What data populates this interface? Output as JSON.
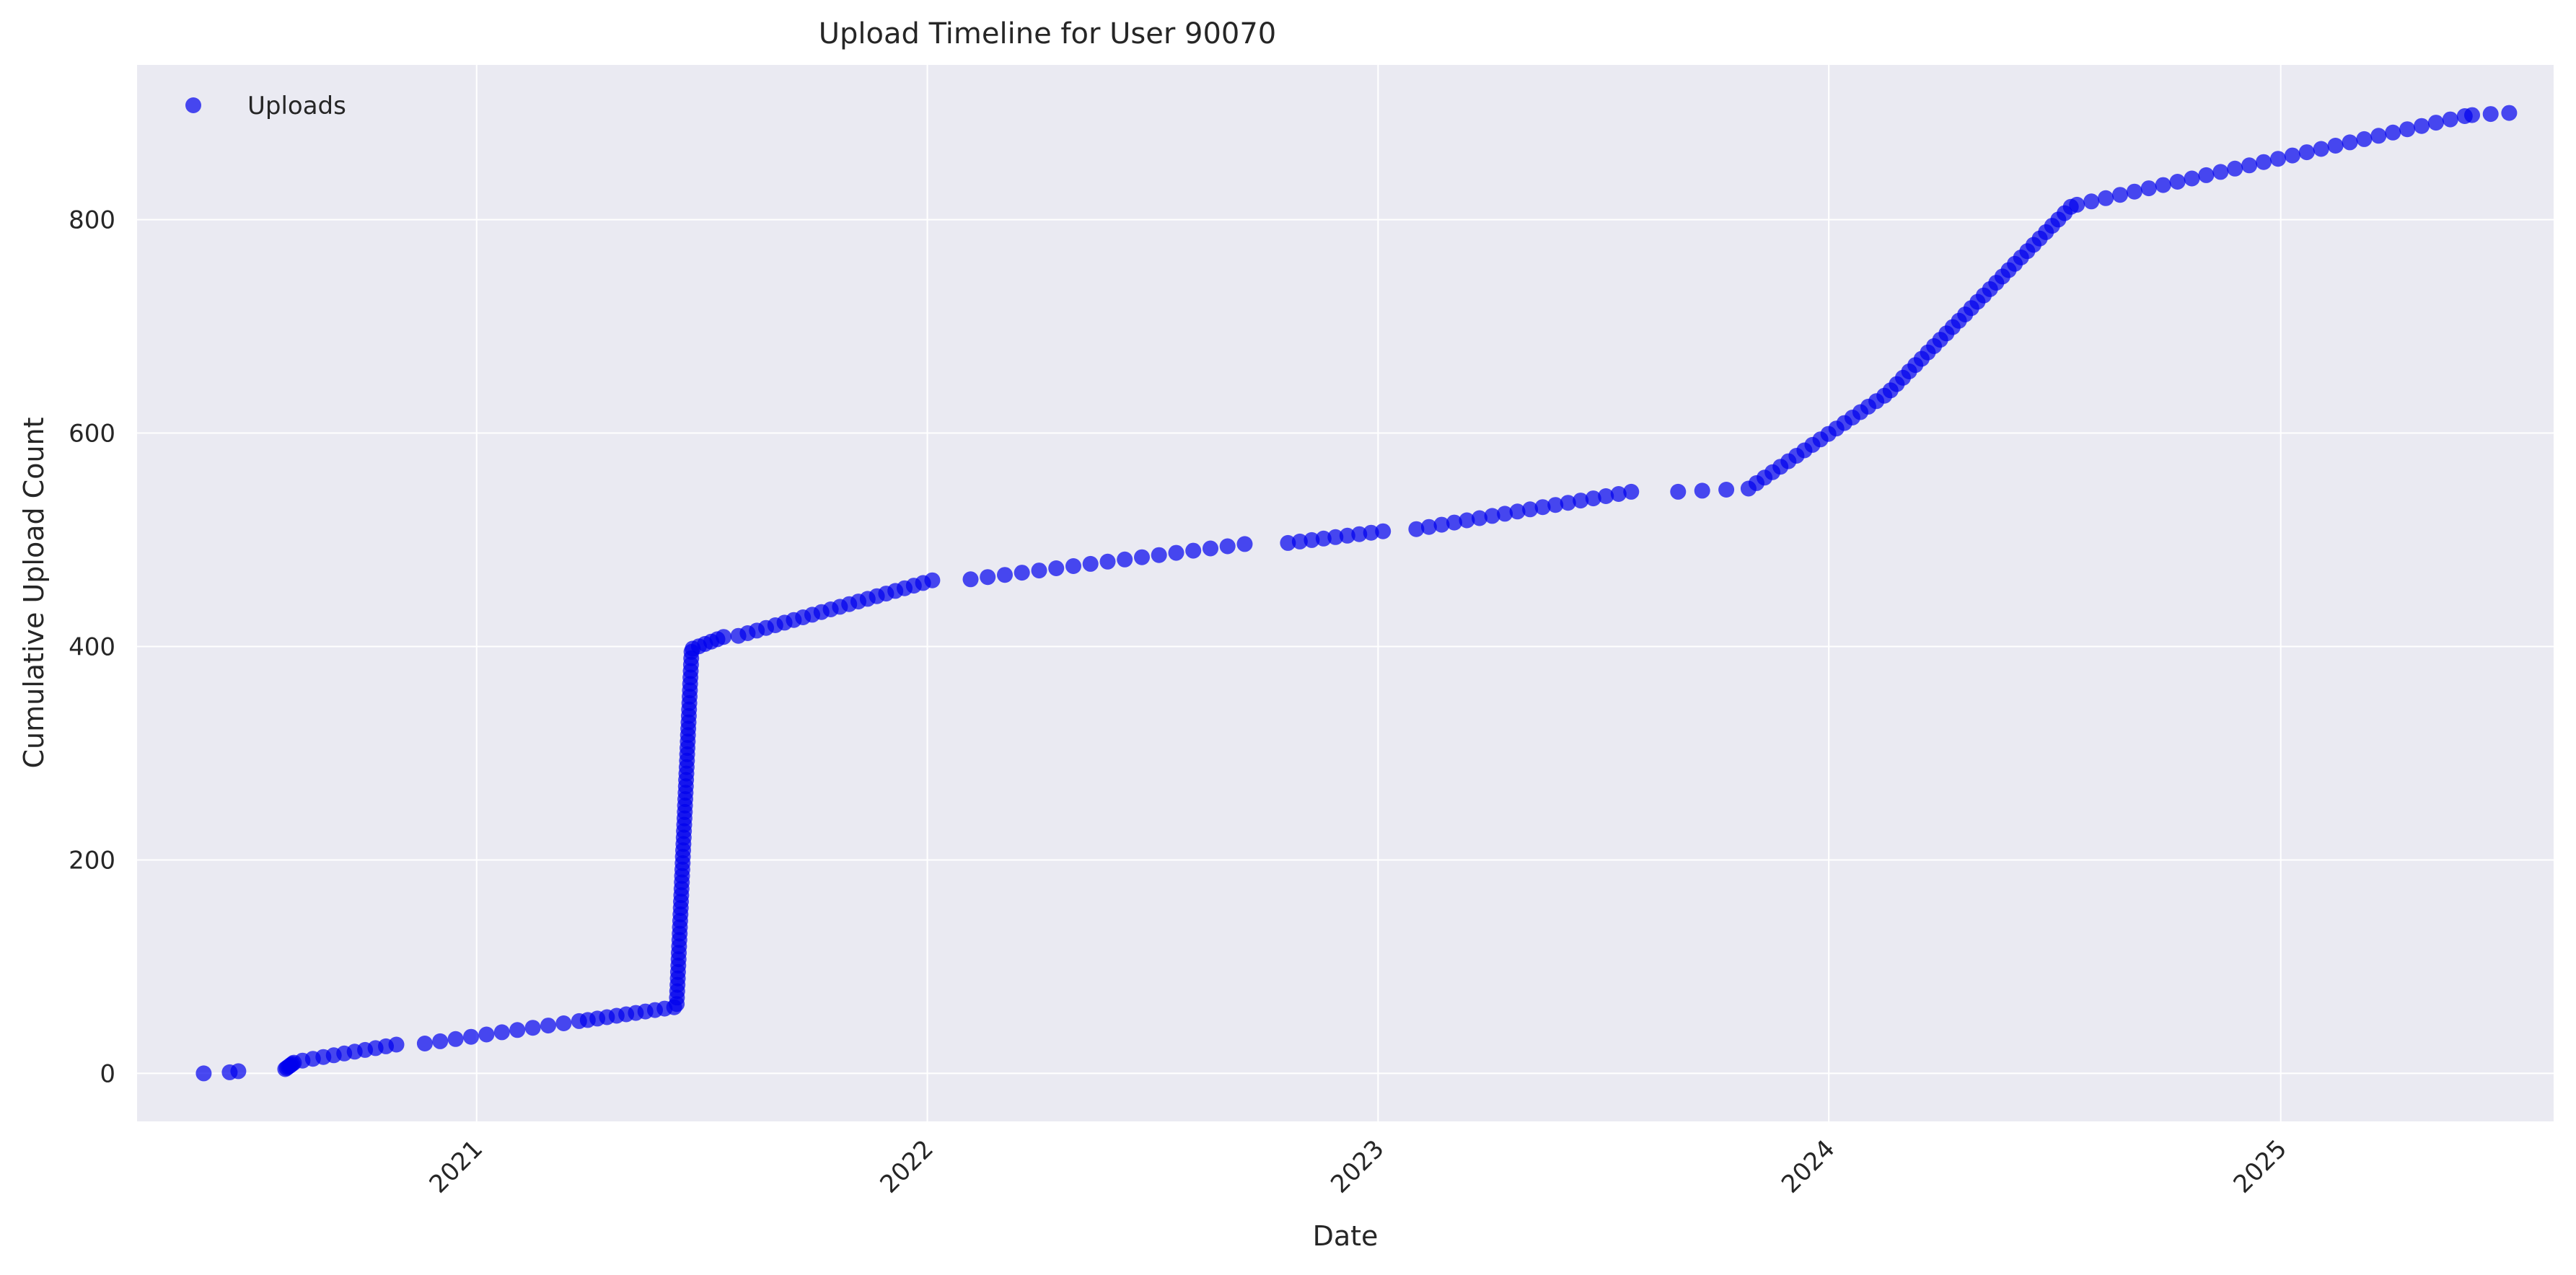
{
  "chart_data": {
    "type": "scatter",
    "title": "Upload Timeline for User 90070",
    "xlabel": "Date",
    "ylabel": "Cumulative Upload Count",
    "x_type": "date",
    "xlim": [
      "2020-04-01",
      "2025-08-10"
    ],
    "ylim": [
      -45,
      945
    ],
    "x_ticks": [
      "2021-01-01",
      "2022-01-01",
      "2023-01-01",
      "2024-01-01",
      "2025-01-01"
    ],
    "x_tick_labels": [
      "2021",
      "2022",
      "2023",
      "2024",
      "2025"
    ],
    "y_ticks": [
      0,
      200,
      400,
      600,
      800
    ],
    "y_tick_labels": [
      "0",
      "200",
      "400",
      "600",
      "800"
    ],
    "grid": true,
    "legend_position": "top-left",
    "background_color": "#eaeaf2",
    "grid_color": "#ffffff",
    "series": [
      {
        "name": "Uploads",
        "color": "#0000ee",
        "segments": [
          {
            "from": "2020-05-25",
            "to": "2020-05-25",
            "y_from": 0,
            "y_to": 0,
            "count": 1
          },
          {
            "from": "2020-06-15",
            "to": "2020-06-22",
            "y_from": 1,
            "y_to": 2,
            "count": 2
          },
          {
            "from": "2020-07-30",
            "to": "2020-08-06",
            "y_from": 4,
            "y_to": 10,
            "count": 7
          },
          {
            "from": "2020-08-13",
            "to": "2020-10-28",
            "y_from": 12,
            "y_to": 27,
            "count": 10
          },
          {
            "from": "2020-11-20",
            "to": "2021-03-25",
            "y_from": 28,
            "y_to": 49,
            "count": 11
          },
          {
            "from": "2021-04-01",
            "to": "2021-06-10",
            "y_from": 50,
            "y_to": 62,
            "count": 10
          },
          {
            "from": "2021-06-12",
            "to": "2021-06-24",
            "y_from": 65,
            "y_to": 395,
            "count": 56
          },
          {
            "from": "2021-06-25",
            "to": "2021-07-20",
            "y_from": 398,
            "y_to": 409,
            "count": 6
          },
          {
            "from": "2021-08-01",
            "to": "2022-01-05",
            "y_from": 410,
            "y_to": 462,
            "count": 22
          },
          {
            "from": "2022-02-05",
            "to": "2022-09-15",
            "y_from": 463,
            "y_to": 496,
            "count": 17
          },
          {
            "from": "2022-10-20",
            "to": "2023-01-05",
            "y_from": 497,
            "y_to": 508,
            "count": 9
          },
          {
            "from": "2023-02-01",
            "to": "2023-07-25",
            "y_from": 510,
            "y_to": 545,
            "count": 18
          },
          {
            "from": "2023-09-01",
            "to": "2023-10-10",
            "y_from": 545,
            "y_to": 547,
            "count": 3
          },
          {
            "from": "2023-10-28",
            "to": "2024-02-15",
            "y_from": 548,
            "y_to": 635,
            "count": 18
          },
          {
            "from": "2024-02-20",
            "to": "2024-07-15",
            "y_from": 640,
            "y_to": 812,
            "count": 30
          },
          {
            "from": "2024-07-20",
            "to": "2025-05-30",
            "y_from": 814,
            "y_to": 897,
            "count": 28
          },
          {
            "from": "2025-06-05",
            "to": "2025-07-05",
            "y_from": 898,
            "y_to": 900,
            "count": 3
          }
        ]
      }
    ]
  }
}
